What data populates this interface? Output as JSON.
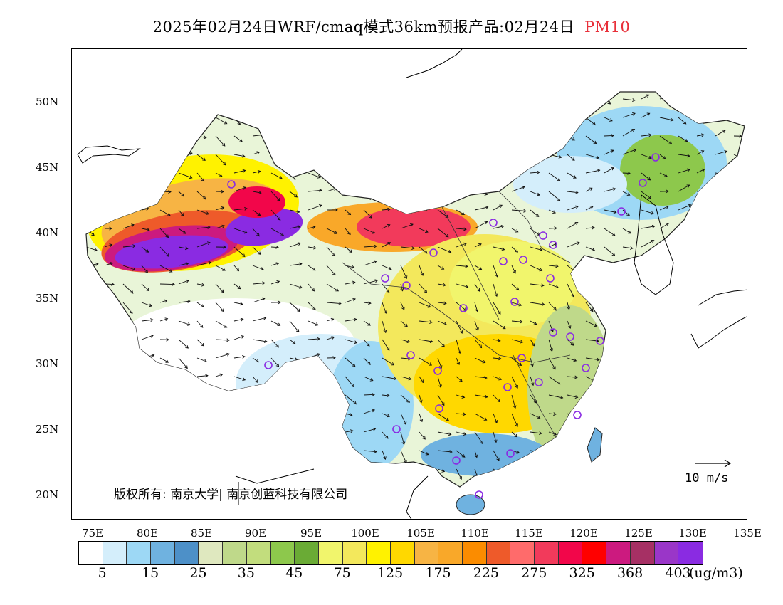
{
  "title": {
    "main": "2025年02月24日WRF/cmaq模式36km预报产品:02月24日",
    "pollutant": "PM10"
  },
  "map": {
    "lat_labels": [
      "50N",
      "45N",
      "40N",
      "35N",
      "30N",
      "25N",
      "20N"
    ],
    "lon_labels": [
      "75E",
      "80E",
      "85E",
      "90E",
      "95E",
      "100E",
      "105E",
      "110E",
      "115E",
      "120E",
      "125E",
      "130E",
      "135E"
    ],
    "copyright": "版权所有: 南京大学| 南京创蓝科技有限公司",
    "wind_scale_label": "10 m/s"
  },
  "legend": {
    "colors": [
      "#ffffff",
      "#d4eefb",
      "#9dd8f5",
      "#6fb2e0",
      "#4d90c8",
      "#dfe8bf",
      "#bfd98a",
      "#c2dd7d",
      "#8dc84c",
      "#6aab35",
      "#f1f56c",
      "#f3e85c",
      "#fff200",
      "#ffd800",
      "#f7b444",
      "#f9a829",
      "#fb8c00",
      "#ee5a2a",
      "#ff6b6b",
      "#f23a5b",
      "#f2064a",
      "#ff0000",
      "#cc1a7f",
      "#a63064",
      "#9a36c8",
      "#8a2be2"
    ],
    "labels": [
      "5",
      "15",
      "25",
      "35",
      "45",
      "75",
      "125",
      "175",
      "225",
      "275",
      "325",
      "368",
      "403"
    ],
    "unit": "(ug/m3)"
  }
}
